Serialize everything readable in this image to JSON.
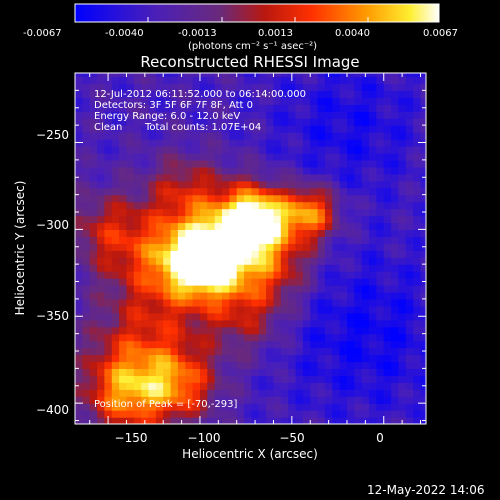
{
  "colorbar": {
    "ticks": [
      "-0.0067",
      "-0.0040",
      "-0.0013",
      "0.0013",
      "0.0040",
      "0.0067"
    ],
    "unit_label": "(photons cm⁻² s⁻¹ asec⁻²)",
    "range": [
      -0.0067,
      0.0067
    ]
  },
  "chart_data": {
    "type": "heatmap",
    "title": "Reconstructed RHESSI Image",
    "xlabel": "Heliocentric X (arcsec)",
    "ylabel": "Heliocentric Y (arcsec)",
    "xlim": [
      -168,
      23
    ],
    "ylim": [
      -412,
      -210
    ],
    "x_ticks": [
      -150,
      -100,
      -50,
      0
    ],
    "x_tick_labels": [
      "−150",
      "−100",
      "−50",
      "0"
    ],
    "y_ticks": [
      -400,
      -350,
      -300,
      -250
    ],
    "y_tick_labels": [
      "−400",
      "−350",
      "−300",
      "−250"
    ],
    "peak_position": [
      -70,
      -293
    ],
    "colormap": "blue-purple-red-yellow-white"
  },
  "info": {
    "line1": "12-Jul-2012 06:11:52.000 to 06:14:00.000",
    "line2": "Detectors: 3F 5F 6F 7F 8F, Att 0",
    "line3": "Energy Range: 6.0 - 12.0 keV",
    "line4_a": "Clean",
    "line4_b": "Total counts: 1.07E+04",
    "peak_text": "Position of Peak = [-70,-293]"
  },
  "footer": {
    "timestamp": "12-May-2022 14:06"
  }
}
